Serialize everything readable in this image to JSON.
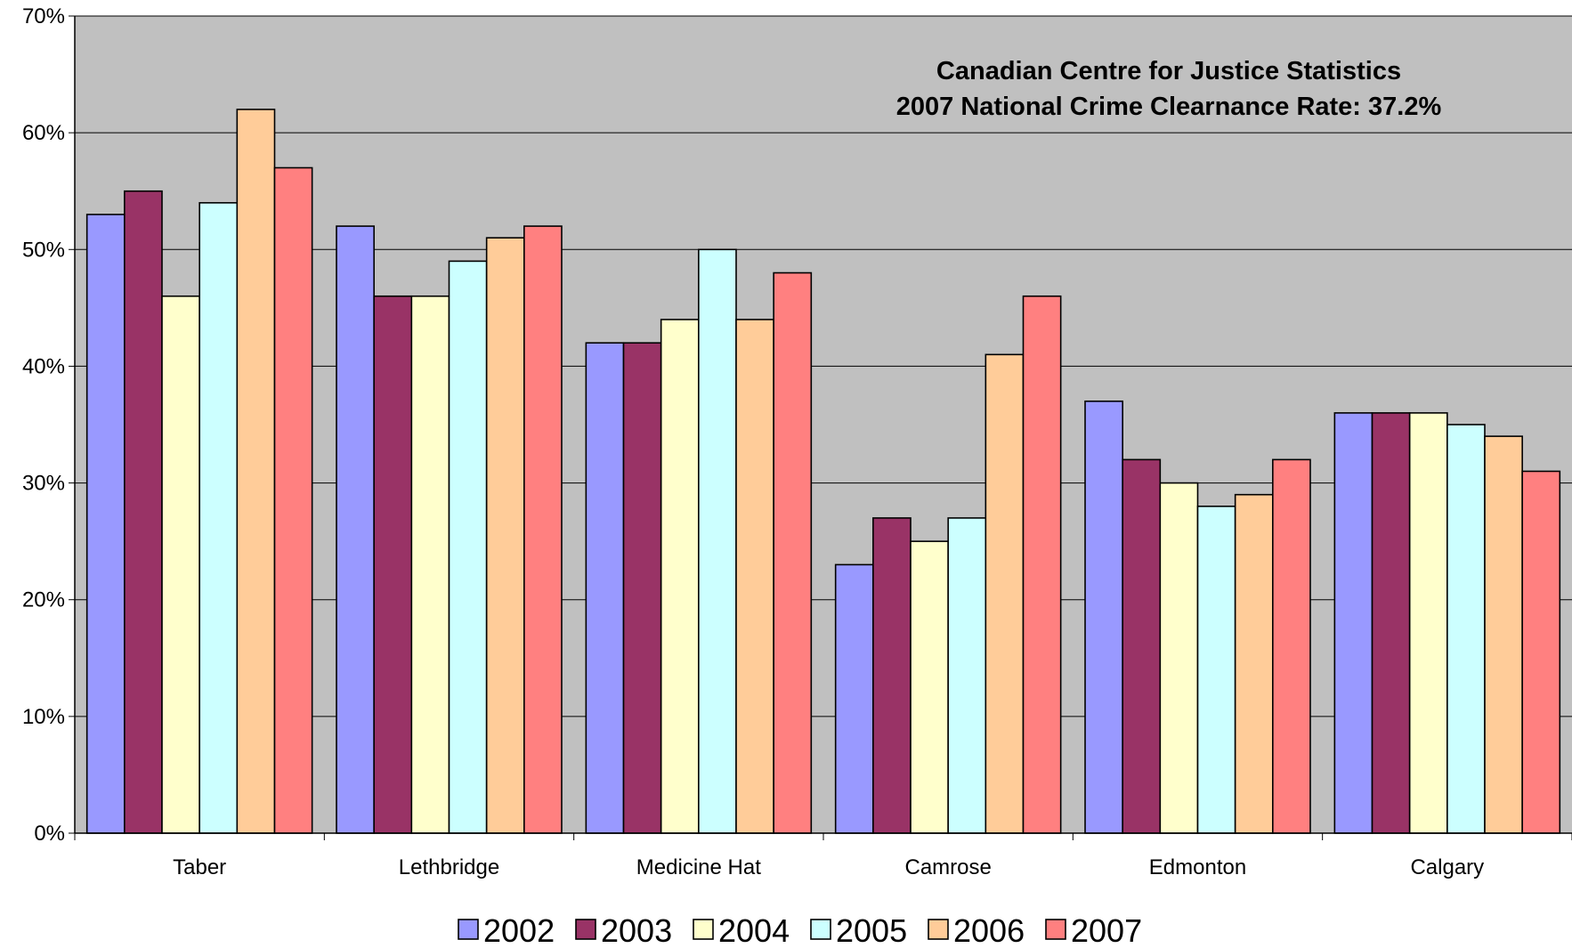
{
  "chart_data": {
    "type": "bar",
    "title": "",
    "xlabel": "",
    "ylabel": "",
    "ylim": [
      0,
      0.7
    ],
    "yticks": [
      0,
      0.1,
      0.2,
      0.3,
      0.4,
      0.5,
      0.6,
      0.7
    ],
    "ytick_labels": [
      "0%",
      "10%",
      "20%",
      "30%",
      "40%",
      "50%",
      "60%",
      "70%"
    ],
    "grid": true,
    "plot_background": "#c0c0c0",
    "legend_position": "bottom",
    "annotation": {
      "line1": "Canadian Centre for Justice Statistics",
      "line2": "2007 National Crime Clearnance Rate:  37.2%"
    },
    "categories": [
      "Taber",
      "Lethbridge",
      "Medicine Hat",
      "Camrose",
      "Edmonton",
      "Calgary"
    ],
    "series": [
      {
        "name": "2002",
        "color": "#9999ff",
        "values": [
          0.53,
          0.52,
          0.42,
          0.23,
          0.37,
          0.36
        ]
      },
      {
        "name": "2003",
        "color": "#993366",
        "values": [
          0.55,
          0.46,
          0.42,
          0.27,
          0.32,
          0.36
        ]
      },
      {
        "name": "2004",
        "color": "#ffffcc",
        "values": [
          0.46,
          0.46,
          0.44,
          0.25,
          0.3,
          0.36
        ]
      },
      {
        "name": "2005",
        "color": "#ccffff",
        "values": [
          0.54,
          0.49,
          0.5,
          0.27,
          0.28,
          0.35
        ]
      },
      {
        "name": "2006",
        "color": "#ffcc99",
        "values": [
          0.62,
          0.51,
          0.44,
          0.41,
          0.29,
          0.34
        ]
      },
      {
        "name": "2007",
        "color": "#ff8080",
        "values": [
          0.57,
          0.52,
          0.48,
          0.46,
          0.32,
          0.31
        ]
      }
    ]
  }
}
